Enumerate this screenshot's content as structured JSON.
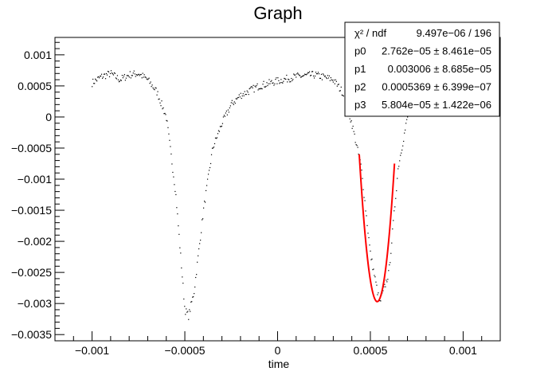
{
  "colors": {
    "frame": "#000000",
    "data_points": "#000000",
    "fit_curve": "#ff0000",
    "background": "#ffffff"
  },
  "chart_data": {
    "type": "scatter",
    "title": "Graph",
    "xlabel": "time",
    "ylabel": "",
    "xlim": [
      -0.0012,
      0.0012
    ],
    "ylim": [
      -0.0036,
      0.00128
    ],
    "grid": false,
    "x_ticks": [
      {
        "value": -0.001,
        "label": "−0.001"
      },
      {
        "value": -0.0005,
        "label": "−0.0005"
      },
      {
        "value": 0,
        "label": "0"
      },
      {
        "value": 0.0005,
        "label": "0.0005"
      },
      {
        "value": 0.001,
        "label": "0.001"
      }
    ],
    "y_ticks": [
      {
        "value": 0.001,
        "label": "0.001"
      },
      {
        "value": 0.0005,
        "label": "0.0005"
      },
      {
        "value": 0,
        "label": "0"
      },
      {
        "value": -0.0005,
        "label": "−0.0005"
      },
      {
        "value": -0.001,
        "label": "−0.001"
      },
      {
        "value": -0.0015,
        "label": "−0.0015"
      },
      {
        "value": -0.002,
        "label": "−0.002"
      },
      {
        "value": -0.0025,
        "label": "−0.0025"
      },
      {
        "value": -0.003,
        "label": "−0.003"
      },
      {
        "value": -0.0035,
        "label": "−0.0035"
      }
    ],
    "data_series": {
      "marker": "dot",
      "x_start": -0.001,
      "x_end": 0.0007,
      "point_count": 400,
      "profile": [
        [
          -0.001,
          0.00055
        ],
        [
          -0.00095,
          0.00065
        ],
        [
          -0.0009,
          0.0007
        ],
        [
          -0.00085,
          0.0006
        ],
        [
          -0.0008,
          0.00068
        ],
        [
          -0.00075,
          0.0007
        ],
        [
          -0.0007,
          0.0006
        ],
        [
          -0.00065,
          0.0004
        ],
        [
          -0.0006,
          0.0
        ],
        [
          -0.00055,
          -0.0012
        ],
        [
          -0.0005,
          -0.0031
        ],
        [
          -0.00048,
          -0.0032
        ],
        [
          -0.00045,
          -0.0028
        ],
        [
          -0.0004,
          -0.0015
        ],
        [
          -0.00035,
          -0.0005
        ],
        [
          -0.0003,
          -0.0001
        ],
        [
          -0.00025,
          0.0002
        ],
        [
          -0.0002,
          0.00035
        ],
        [
          -0.0001,
          0.0005
        ],
        [
          0.0,
          0.00058
        ],
        [
          0.0001,
          0.00065
        ],
        [
          0.0002,
          0.00068
        ],
        [
          0.0003,
          0.0006
        ],
        [
          0.00035,
          0.0004
        ],
        [
          0.0004,
          -0.0001
        ],
        [
          0.00045,
          -0.0008
        ],
        [
          0.0005,
          -0.0022
        ],
        [
          0.00055,
          -0.003
        ],
        [
          0.0006,
          -0.0025
        ],
        [
          0.00065,
          -0.0008
        ],
        [
          0.0007,
          0.0
        ]
      ]
    },
    "fit_curve": {
      "function": "p0 + p3 gaussian-like dip",
      "x_range": [
        0.00044,
        0.00063
      ],
      "center": 0.000537,
      "min_value": -0.00297,
      "endpoint_values": [
        -0.0006,
        -0.00075
      ]
    },
    "stats_box": {
      "rows": [
        {
          "name": "χ² / ndf",
          "value": "9.497e−06 / 196"
        },
        {
          "name": "p0",
          "value": "2.762e−05 ± 8.461e−05"
        },
        {
          "name": "p1",
          "value": "0.003006 ± 8.685e−05"
        },
        {
          "name": "p2",
          "value": "0.0005369 ± 6.399e−07"
        },
        {
          "name": "p3",
          "value": "5.804e−05 ± 1.422e−06"
        }
      ]
    }
  }
}
